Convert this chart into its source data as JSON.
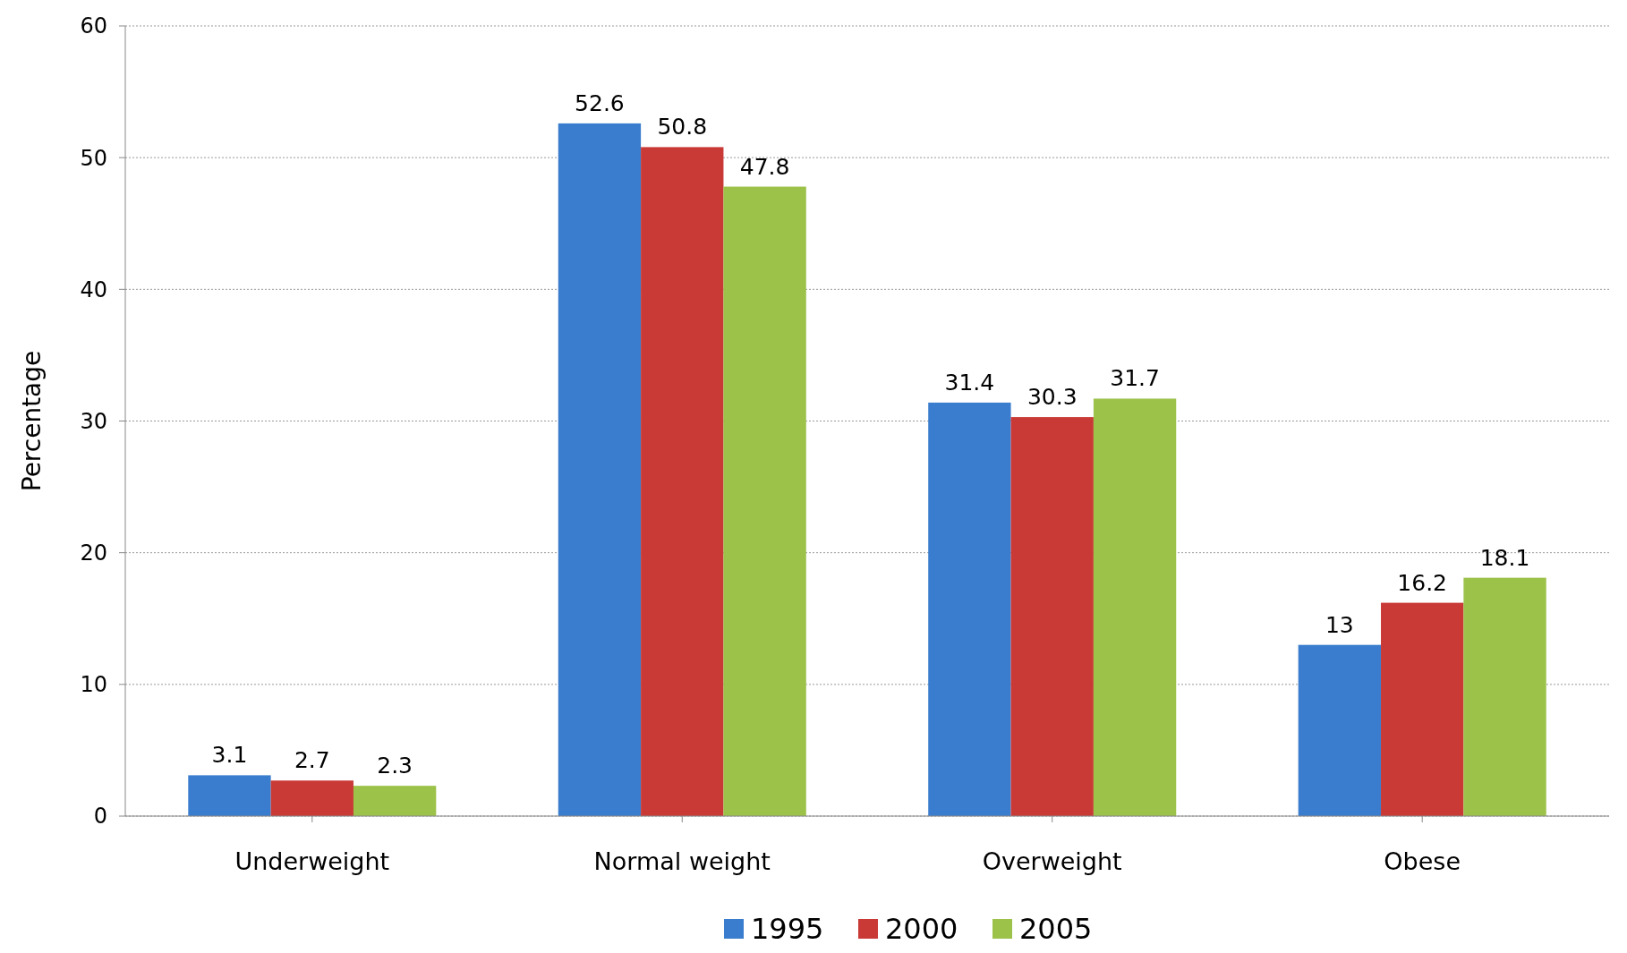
{
  "chart_data": {
    "type": "bar",
    "ylabel": "Percentage",
    "categories": [
      "Underweight",
      "Normal weight",
      "Overweight",
      "Obese"
    ],
    "series": [
      {
        "name": "1995",
        "color": "#3a7dce",
        "values": [
          3.1,
          52.6,
          31.4,
          13
        ]
      },
      {
        "name": "2000",
        "color": "#c93a37",
        "values": [
          2.7,
          50.8,
          30.3,
          16.2
        ]
      },
      {
        "name": "2005",
        "color": "#9cc24a",
        "values": [
          2.3,
          47.8,
          31.7,
          18.1
        ]
      }
    ],
    "ylim": [
      0,
      60
    ],
    "yticks": [
      0,
      10,
      20,
      30,
      40,
      50,
      60
    ],
    "grid": "y",
    "legend": "bottom",
    "data_labels": true
  }
}
